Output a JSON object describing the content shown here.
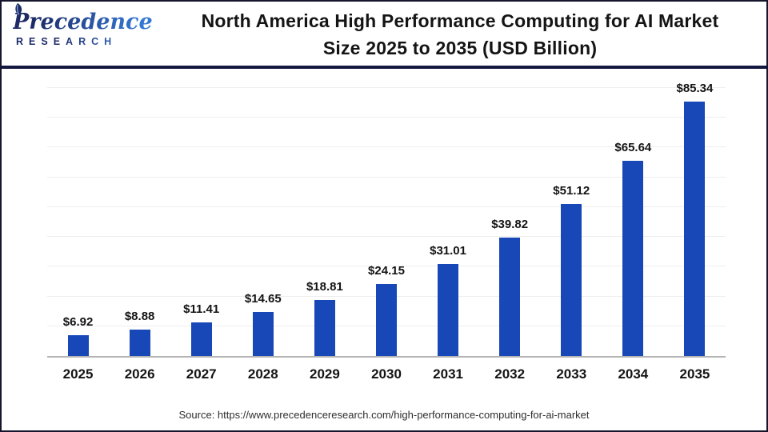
{
  "header": {
    "logo": {
      "brand": "Precedence",
      "subtitle": "RESEARCH",
      "navy": "#1c2a66",
      "blue": "#3577d4"
    },
    "title_line1": "North America High Performance Computing for AI Market",
    "title_line2": "Size 2025 to 2035 (USD Billion)"
  },
  "chart_data": {
    "type": "bar",
    "title": "North America High Performance Computing for AI Market Size 2025 to 2035 (USD Billion)",
    "categories": [
      "2025",
      "2026",
      "2027",
      "2028",
      "2029",
      "2030",
      "2031",
      "2032",
      "2033",
      "2034",
      "2035"
    ],
    "values": [
      6.92,
      8.88,
      11.41,
      14.65,
      18.81,
      24.15,
      31.01,
      39.82,
      51.12,
      65.64,
      85.34
    ],
    "labels": [
      "$6.92",
      "$8.88",
      "$11.41",
      "$14.65",
      "$18.81",
      "$24.15",
      "$31.01",
      "$39.82",
      "$51.12",
      "$65.64",
      "$85.34"
    ],
    "xlabel": "",
    "ylabel": "USD Billion",
    "ylim": [
      0,
      90
    ],
    "gridline_step": 10,
    "grid": true,
    "legend": false,
    "bar_color": "#1847b8",
    "axis_line_color": "#b5b5b5",
    "gridline_color": "#eeeeee"
  },
  "footer": {
    "source": "Source: https://www.precedenceresearch.com/high-performance-computing-for-ai-market"
  }
}
